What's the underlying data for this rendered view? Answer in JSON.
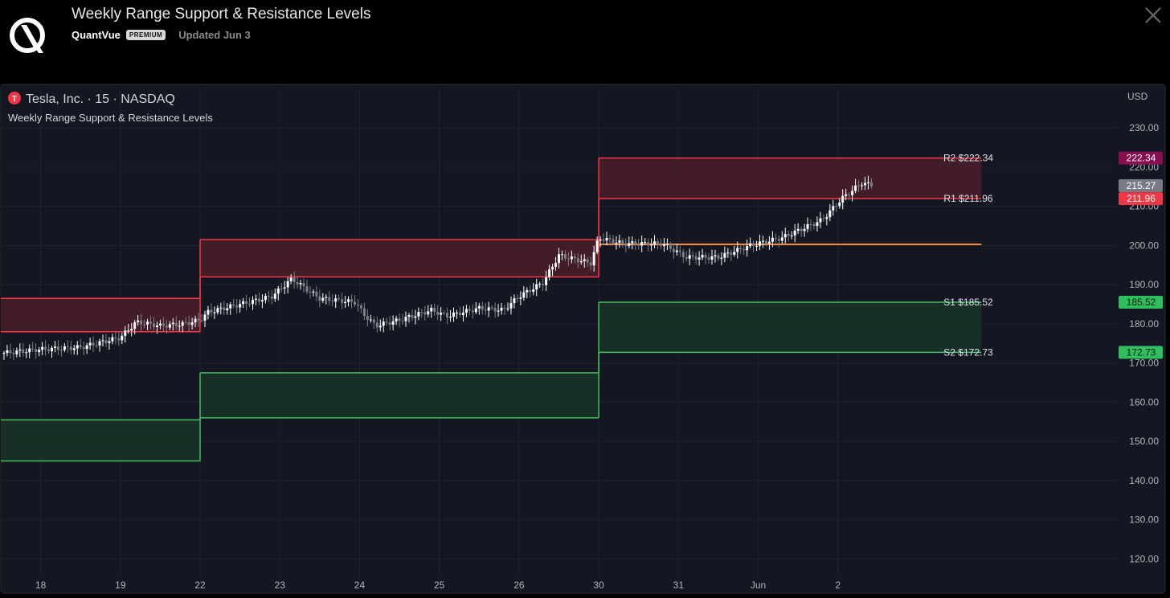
{
  "header": {
    "title": "Weekly Range Support & Resistance Levels",
    "author": "QuantVue",
    "badge": "PREMIUM",
    "updated": "Updated Jun 3"
  },
  "chart_info": {
    "symbol_title": "Tesla, Inc. · 15 · NASDAQ",
    "symbol_glyph": "T",
    "indicator": "Weekly Range Support & Resistance Levels",
    "currency": "USD"
  },
  "colors": {
    "background": "#141722",
    "grid": "#1e222d",
    "resistance": "#f23645",
    "resistance_fill": "#4a1f28",
    "support": "#3fbf5f",
    "support_fill": "#173424",
    "pivot": "#f7873a",
    "candle_up": "#ffffff",
    "candle_down": "#7a7f8a",
    "r2_badge": "#880e4f",
    "r1_badge": "#f23645",
    "price_badge": "#787b86",
    "s_badge": "#2fbf5e"
  },
  "chart_data": {
    "type": "line",
    "ylim": [
      117,
      236
    ],
    "y_ticks": [
      "230.00",
      "220.00",
      "210.00",
      "200.00",
      "190.00",
      "180.00",
      "170.00",
      "160.00",
      "150.00",
      "140.00",
      "130.00",
      "120.00"
    ],
    "x_ticks": [
      "18",
      "19",
      "22",
      "23",
      "24",
      "25",
      "26",
      "30",
      "31",
      "Jun",
      "2"
    ],
    "x_tick_positions": [
      0,
      1,
      2,
      3,
      4,
      5,
      6,
      7,
      8,
      9,
      10
    ],
    "x_domain": [
      -0.5,
      13.5
    ],
    "periods": [
      {
        "x_start": -0.5,
        "x_end": 2,
        "r2": 186.5,
        "r1": 178,
        "s1": 155.5,
        "s2": 145
      },
      {
        "x_start": 2,
        "x_end": 7,
        "r2": 201.5,
        "r1": 192,
        "s1": 167.5,
        "s2": 156
      },
      {
        "x_start": 7,
        "x_end": 11.8,
        "r2": 222.34,
        "r1": 211.96,
        "pivot": 200.3,
        "s1": 185.52,
        "s2": 172.73
      }
    ],
    "level_labels": [
      {
        "label": "R2 $222.34",
        "value": 222.34,
        "badge": "222.34"
      },
      {
        "label": "R1 $211.96",
        "value": 211.96,
        "badge": "211.96"
      },
      {
        "label": "S1 $185.52",
        "value": 185.52,
        "badge": "185.52"
      },
      {
        "label": "S2 $172.73",
        "value": 172.73,
        "badge": "172.73"
      }
    ],
    "last_price": {
      "value": 215.27,
      "label": "215.27"
    },
    "price_path": [
      [
        -0.5,
        172.5
      ],
      [
        0.0,
        173.5
      ],
      [
        0.5,
        174
      ],
      [
        1.0,
        176.5
      ],
      [
        1.2,
        180.5
      ],
      [
        1.5,
        179.5
      ],
      [
        1.8,
        180
      ],
      [
        2.0,
        181
      ],
      [
        2.1,
        183
      ],
      [
        2.5,
        185
      ],
      [
        2.9,
        187
      ],
      [
        3.15,
        191.5
      ],
      [
        3.5,
        186.5
      ],
      [
        3.95,
        185.5
      ],
      [
        4.05,
        182.5
      ],
      [
        4.2,
        179.5
      ],
      [
        4.5,
        181
      ],
      [
        4.9,
        183.5
      ],
      [
        5.1,
        182
      ],
      [
        5.5,
        184
      ],
      [
        5.8,
        183.5
      ],
      [
        6.0,
        187
      ],
      [
        6.3,
        190.5
      ],
      [
        6.5,
        197.5
      ],
      [
        6.9,
        195.5
      ],
      [
        7.0,
        202
      ],
      [
        7.3,
        200.5
      ],
      [
        7.8,
        200.5
      ],
      [
        8.1,
        197
      ],
      [
        8.5,
        197
      ],
      [
        8.9,
        200
      ],
      [
        9.3,
        202
      ],
      [
        9.8,
        206.5
      ],
      [
        10.05,
        212
      ],
      [
        10.3,
        216
      ],
      [
        10.45,
        215.27
      ]
    ]
  }
}
